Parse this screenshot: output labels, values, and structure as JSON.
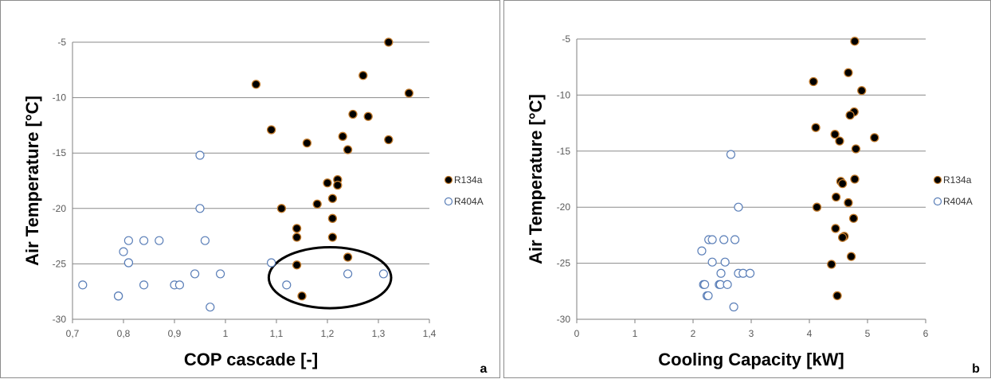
{
  "chart_data": [
    {
      "type": "scatter",
      "panel_label": "a",
      "xlabel": "COP cascade [-]",
      "ylabel": "Air Temperature [°C]",
      "xlim": [
        0.7,
        1.4
      ],
      "ylim": [
        -30,
        -5
      ],
      "xticks": [
        "0,7",
        "0,8",
        "0,9",
        "1",
        "1,1",
        "1,2",
        "1,3",
        "1,4"
      ],
      "yticks": [
        "-5",
        "-10",
        "-15",
        "-20",
        "-25",
        "-30"
      ],
      "grid": "horizontal",
      "legend_position": "right",
      "annotation": "ellipse around points near x 1.09–1.31, y -23.5 to -29",
      "series": [
        {
          "name": "R134a",
          "style": "filled",
          "points": [
            [
              1.32,
              -5
            ],
            [
              1.06,
              -8.8
            ],
            [
              1.27,
              -8
            ],
            [
              1.36,
              -9.6
            ],
            [
              1.09,
              -12.9
            ],
            [
              1.25,
              -11.5
            ],
            [
              1.28,
              -11.7
            ],
            [
              1.16,
              -14.1
            ],
            [
              1.23,
              -13.5
            ],
            [
              1.24,
              -14.7
            ],
            [
              1.32,
              -13.8
            ],
            [
              1.2,
              -17.7
            ],
            [
              1.22,
              -17.4
            ],
            [
              1.22,
              -17.9
            ],
            [
              1.18,
              -19.6
            ],
            [
              1.21,
              -19.1
            ],
            [
              1.11,
              -20
            ],
            [
              1.21,
              -20.9
            ],
            [
              1.14,
              -21.8
            ],
            [
              1.14,
              -22.6
            ],
            [
              1.21,
              -22.6
            ],
            [
              1.24,
              -24.4
            ],
            [
              1.14,
              -25.1
            ],
            [
              1.15,
              -27.9
            ]
          ]
        },
        {
          "name": "R404A",
          "style": "hollow",
          "points": [
            [
              0.95,
              -15.2
            ],
            [
              0.95,
              -20
            ],
            [
              0.81,
              -22.9
            ],
            [
              0.84,
              -22.9
            ],
            [
              0.87,
              -22.9
            ],
            [
              0.96,
              -22.9
            ],
            [
              0.8,
              -23.9
            ],
            [
              0.81,
              -24.9
            ],
            [
              0.81,
              -24.9
            ],
            [
              0.94,
              -25.9
            ],
            [
              0.99,
              -25.9
            ],
            [
              0.72,
              -26.9
            ],
            [
              0.84,
              -26.9
            ],
            [
              0.9,
              -26.9
            ],
            [
              0.91,
              -26.9
            ],
            [
              0.79,
              -27.9
            ],
            [
              0.79,
              -27.9
            ],
            [
              0.97,
              -28.9
            ],
            [
              1.09,
              -24.9
            ],
            [
              1.12,
              -26.9
            ],
            [
              1.24,
              -25.9
            ],
            [
              1.31,
              -25.9
            ]
          ]
        }
      ]
    },
    {
      "type": "scatter",
      "panel_label": "b",
      "xlabel": "Cooling Capacity [kW]",
      "ylabel": "Air Temperature [°C]",
      "xlim": [
        0,
        6
      ],
      "ylim": [
        -30,
        -5
      ],
      "xticks": [
        "0",
        "1",
        "2",
        "3",
        "4",
        "5",
        "6"
      ],
      "yticks": [
        "-5",
        "-10",
        "-15",
        "-20",
        "-25",
        "-30"
      ],
      "grid": "horizontal",
      "legend_position": "right",
      "series": [
        {
          "name": "R134a",
          "style": "filled",
          "points": [
            [
              4.78,
              -5.2
            ],
            [
              4.07,
              -8.8
            ],
            [
              4.67,
              -8
            ],
            [
              4.9,
              -9.6
            ],
            [
              4.11,
              -12.9
            ],
            [
              4.77,
              -11.5
            ],
            [
              4.7,
              -11.8
            ],
            [
              4.52,
              -14.1
            ],
            [
              4.44,
              -13.5
            ],
            [
              4.8,
              -14.8
            ],
            [
              5.12,
              -13.8
            ],
            [
              4.54,
              -17.7
            ],
            [
              4.78,
              -17.5
            ],
            [
              4.57,
              -17.9
            ],
            [
              4.67,
              -19.6
            ],
            [
              4.46,
              -19.1
            ],
            [
              4.13,
              -20
            ],
            [
              4.76,
              -21
            ],
            [
              4.45,
              -21.9
            ],
            [
              4.6,
              -22.6
            ],
            [
              4.57,
              -22.7
            ],
            [
              4.72,
              -24.4
            ],
            [
              4.38,
              -25.1
            ],
            [
              4.48,
              -27.9
            ]
          ]
        },
        {
          "name": "R404A",
          "style": "hollow",
          "points": [
            [
              2.65,
              -15.3
            ],
            [
              2.78,
              -20
            ],
            [
              2.27,
              -22.9
            ],
            [
              2.33,
              -22.9
            ],
            [
              2.53,
              -22.9
            ],
            [
              2.72,
              -22.9
            ],
            [
              2.15,
              -23.9
            ],
            [
              2.33,
              -24.9
            ],
            [
              2.55,
              -24.9
            ],
            [
              2.48,
              -25.9
            ],
            [
              2.78,
              -25.9
            ],
            [
              2.86,
              -25.9
            ],
            [
              2.98,
              -25.9
            ],
            [
              2.18,
              -26.9
            ],
            [
              2.2,
              -26.9
            ],
            [
              2.45,
              -26.9
            ],
            [
              2.47,
              -26.9
            ],
            [
              2.59,
              -26.9
            ],
            [
              2.24,
              -27.9
            ],
            [
              2.26,
              -27.9
            ],
            [
              2.7,
              -28.9
            ]
          ]
        }
      ]
    }
  ]
}
